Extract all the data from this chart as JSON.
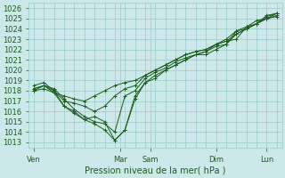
{
  "title": "Pression niveau de la mer( hPa )",
  "ylim": [
    1012.5,
    1026.5
  ],
  "xtick_labels": [
    "Ven",
    "Mar",
    "Sam",
    "Dim",
    "Lun"
  ],
  "xtick_positions": [
    0,
    8.5,
    11.5,
    18,
    23
  ],
  "background_color": "#cce8e8",
  "grid_color": "#99cccc",
  "line_color": "#1a5c1a",
  "series": [
    [
      1018.0,
      1018.5,
      1017.8,
      1016.5,
      1015.8,
      1015.2,
      1014.8,
      1014.2,
      1013.2,
      1014.2,
      1017.2,
      1018.8,
      1019.5,
      1020.0,
      1020.5,
      1021.0,
      1021.5,
      1021.5,
      1022.0,
      1022.5,
      1023.5,
      1024.0,
      1024.5,
      1025.2,
      1025.5
    ],
    [
      1018.2,
      1018.5,
      1018.2,
      1017.2,
      1016.2,
      1015.5,
      1015.0,
      1014.8,
      1014.0,
      1017.5,
      1018.0,
      1019.2,
      1019.8,
      1020.2,
      1020.8,
      1021.2,
      1021.5,
      1021.8,
      1022.3,
      1022.5,
      1023.8,
      1024.2,
      1024.5,
      1025.3,
      1025.5
    ],
    [
      1018.5,
      1018.8,
      1018.0,
      1017.0,
      1016.8,
      1016.5,
      1016.0,
      1016.5,
      1017.5,
      1018.2,
      1018.5,
      1019.5,
      1020.0,
      1020.5,
      1021.0,
      1021.5,
      1021.8,
      1022.0,
      1022.5,
      1023.0,
      1023.8,
      1024.0,
      1024.5,
      1025.0,
      1025.2
    ],
    [
      1018.0,
      1018.2,
      1017.8,
      1017.5,
      1017.2,
      1017.0,
      1017.5,
      1018.0,
      1018.5,
      1018.8,
      1019.0,
      1019.5,
      1020.0,
      1020.5,
      1021.0,
      1021.5,
      1021.8,
      1022.0,
      1022.5,
      1022.8,
      1023.0,
      1024.2,
      1024.8,
      1025.0,
      1025.3
    ],
    [
      1018.2,
      1018.5,
      1018.0,
      1016.5,
      1016.0,
      1015.2,
      1015.5,
      1015.0,
      1013.2,
      1014.2,
      1017.5,
      1018.8,
      1019.2,
      1020.0,
      1020.5,
      1021.0,
      1021.5,
      1021.8,
      1022.5,
      1022.8,
      1023.5,
      1024.0,
      1024.5,
      1025.0,
      1025.5
    ]
  ],
  "num_points": 25,
  "ylabel_values": [
    1013,
    1014,
    1015,
    1016,
    1017,
    1018,
    1019,
    1020,
    1021,
    1022,
    1023,
    1024,
    1025,
    1026
  ],
  "marker": "+"
}
